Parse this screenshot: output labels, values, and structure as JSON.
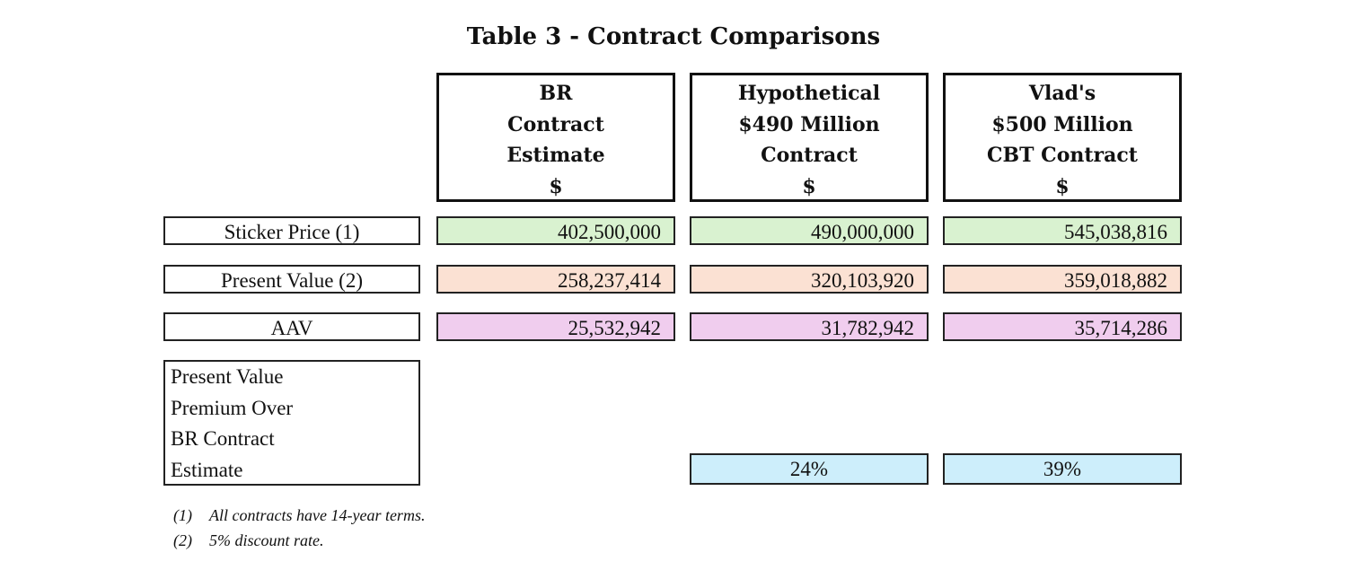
{
  "title": "Table 3 - Contract Comparisons",
  "colors": {
    "sticker": "#d9f2d0",
    "present_value": "#fbe1d3",
    "aav": "#f0cdee",
    "premium": "#cdeefb"
  },
  "columns": [
    {
      "lines": [
        "BR",
        "Contract",
        "Estimate",
        "$"
      ]
    },
    {
      "lines": [
        "Hypothetical",
        "$490 Million",
        "Contract",
        "$"
      ]
    },
    {
      "lines": [
        "Vlad's",
        "$500 Million",
        "CBT Contract",
        "$"
      ]
    }
  ],
  "rows": [
    {
      "label": "Sticker Price (1)",
      "values": [
        "402,500,000",
        "490,000,000",
        "545,038,816"
      ]
    },
    {
      "label": "Present Value (2)",
      "values": [
        "258,237,414",
        "320,103,920",
        "359,018,882"
      ]
    },
    {
      "label": "AAV",
      "values": [
        "25,532,942",
        "31,782,942",
        "35,714,286"
      ]
    }
  ],
  "premium": {
    "label_lines": [
      "Present Value",
      "Premium Over",
      "BR Contract",
      "Estimate"
    ],
    "values": [
      "24%",
      "39%"
    ]
  },
  "footnotes": [
    {
      "marker": "(1)",
      "text": "All contracts have 14-year terms."
    },
    {
      "marker": "(2)",
      "text": "5% discount rate."
    }
  ]
}
